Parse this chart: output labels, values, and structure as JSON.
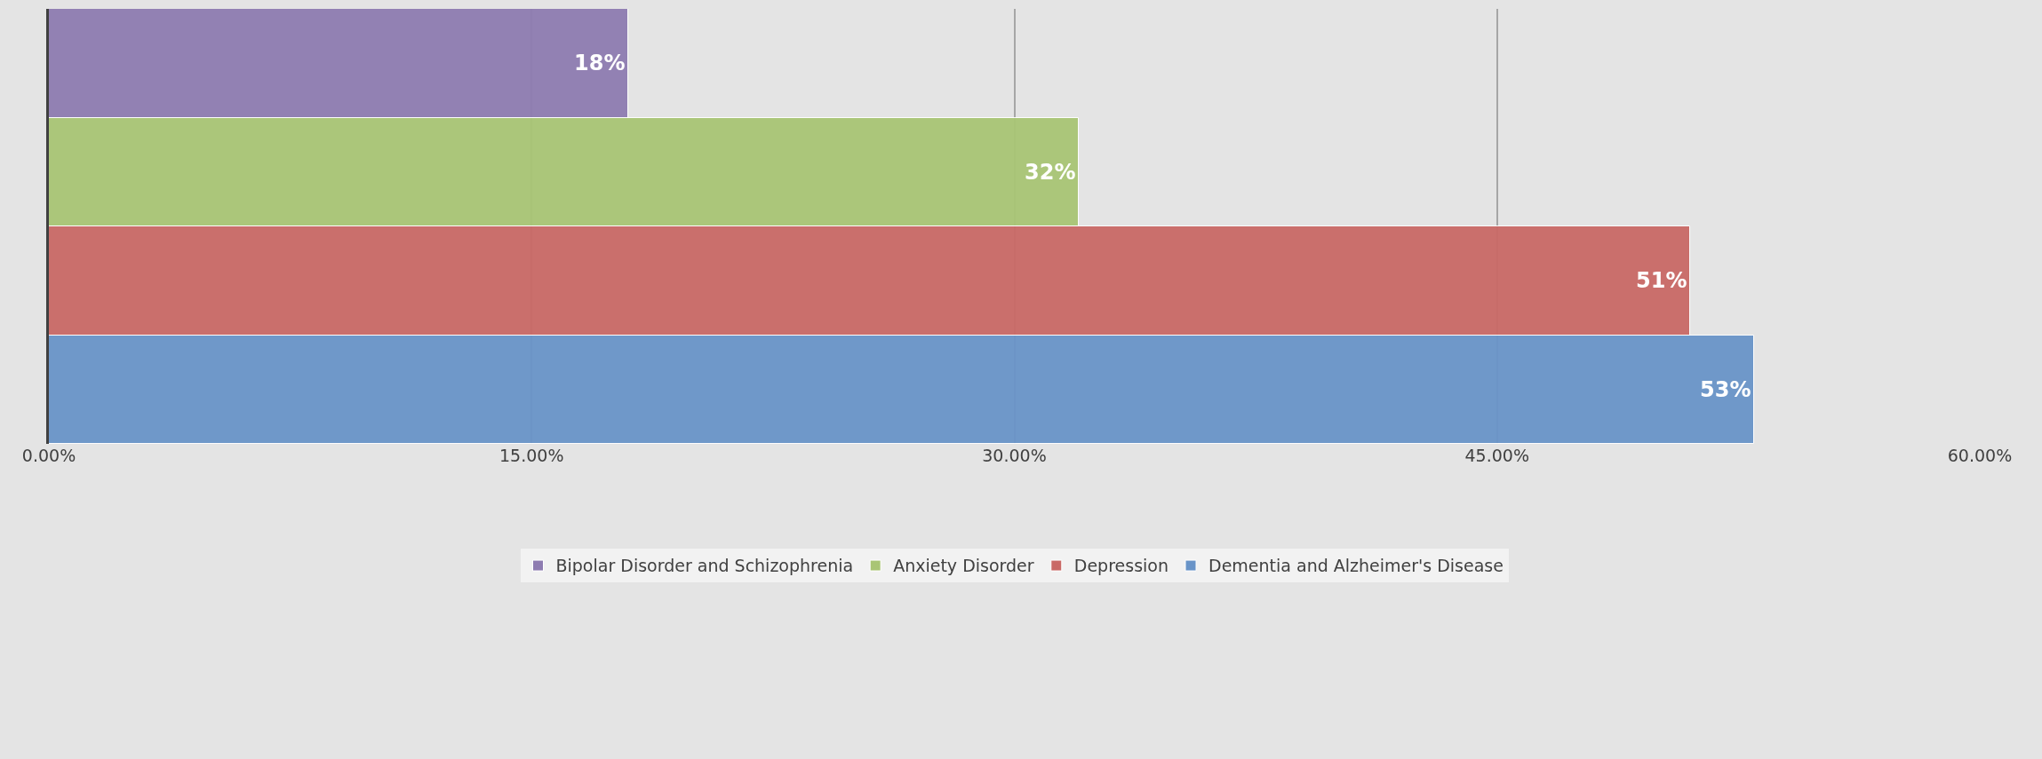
{
  "chart_data": {
    "type": "bar",
    "orientation": "horizontal",
    "categories": [
      null
    ],
    "series": [
      {
        "name": "Bipolar Disorder and Schizophrenia",
        "color": "#8e7cb1",
        "values": [
          18
        ],
        "value_labels": [
          "18%"
        ]
      },
      {
        "name": "Anxiety Disorder",
        "color": "#a9c575",
        "values": [
          32
        ],
        "value_labels": [
          "32%"
        ]
      },
      {
        "name": "Depression",
        "color": "#c96966",
        "values": [
          51
        ],
        "value_labels": [
          "51%"
        ]
      },
      {
        "name": "Dementia and Alzheimer's Disease",
        "color": "#6994c8",
        "values": [
          53
        ],
        "value_labels": [
          "53%"
        ]
      }
    ],
    "xlim": [
      0,
      60
    ],
    "xticks": [
      {
        "value": 0,
        "label": "0.00%"
      },
      {
        "value": 15,
        "label": "15.00%"
      },
      {
        "value": 30,
        "label": "30.00%"
      },
      {
        "value": 45,
        "label": "45.00%"
      },
      {
        "value": 60,
        "label": "60.00%"
      }
    ],
    "grid": "x",
    "legend": "bottom",
    "tick_labels": "x"
  }
}
